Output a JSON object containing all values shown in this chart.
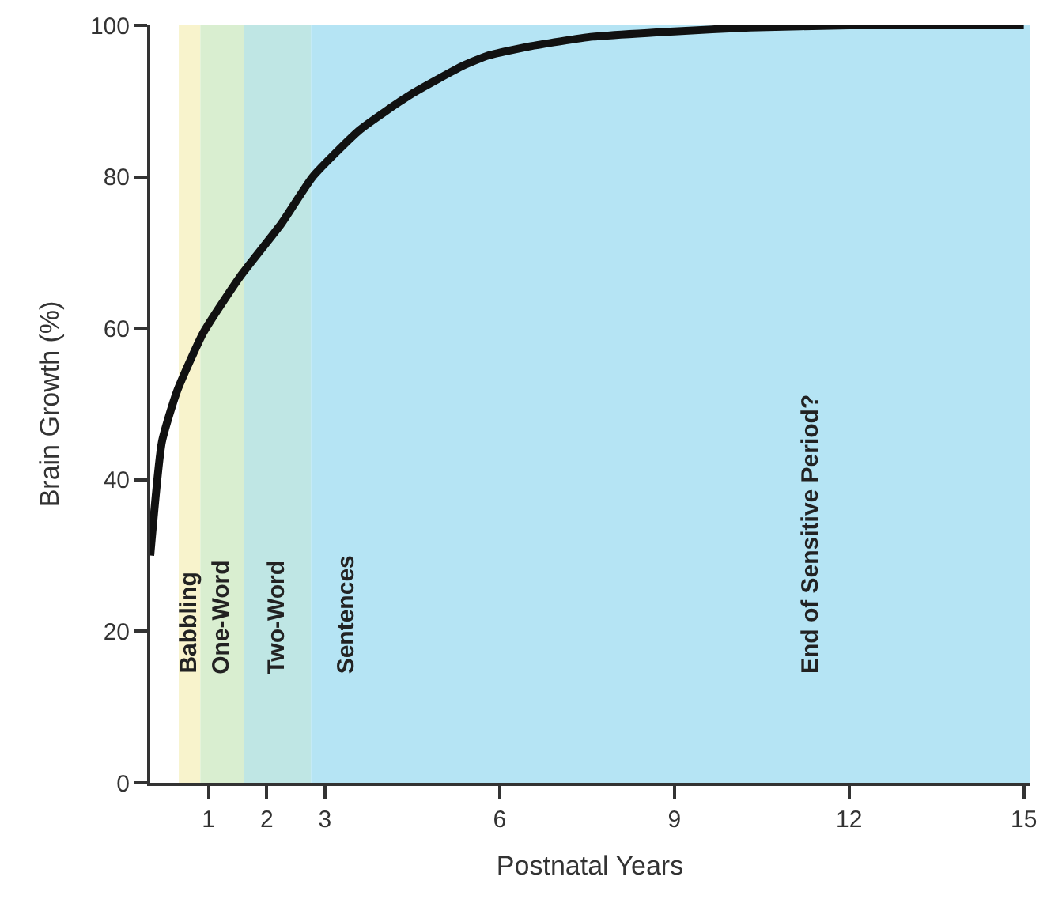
{
  "chart_data": {
    "type": "line",
    "xlabel": "Postnatal Years",
    "ylabel": "Brain Growth (%)",
    "series": [
      {
        "color": "#111111",
        "x": [
          0,
          0.2,
          0.46,
          0.91,
          1.54,
          2.25,
          2.79,
          3.6,
          4.48,
          5.38,
          5.8,
          6.5,
          7.6,
          9,
          10.3,
          12,
          15
        ],
        "values": [
          30,
          45,
          51.7,
          59.4,
          66.8,
          73.8,
          80,
          86.2,
          90.9,
          94.7,
          96,
          97.2,
          98.5,
          99.2,
          99.7,
          100,
          100
        ]
      }
    ],
    "bands": [
      {
        "axis": "x",
        "from": 0.49,
        "to": 0.86,
        "label": "Babbling",
        "color": "#f8f3cc"
      },
      {
        "axis": "x",
        "from": 0.86,
        "to": 1.61,
        "label": "One-Word",
        "color": "#d9eed0"
      },
      {
        "axis": "x",
        "from": 1.61,
        "to": 2.76,
        "label": "Two-Word",
        "color": "#bfe6e4"
      },
      {
        "axis": "x",
        "from": 2.76,
        "to": 15.1,
        "label": "Sentences",
        "color": "#b5e4f4"
      }
    ],
    "annotations": [
      "End of Sensitive Period?"
    ],
    "xlim": [
      0,
      15.1
    ],
    "xticks": [
      1,
      2,
      3,
      6,
      9,
      12,
      15
    ],
    "ylim": [
      0,
      100
    ],
    "yticks": [
      0,
      20,
      40,
      60,
      80,
      100
    ],
    "marker": "none",
    "line_style": "solid"
  }
}
